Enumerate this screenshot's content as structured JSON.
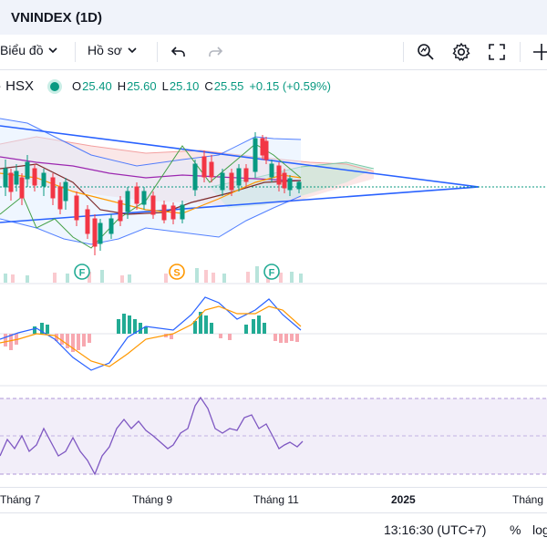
{
  "header": {
    "title": "VNINDEX (1D)"
  },
  "toolbar": {
    "chart_type_label": "Biểu đồ",
    "profile_label": "Hồ sơ",
    "icons": [
      "undo-icon",
      "redo-icon",
      "search-chart-icon",
      "gear-icon",
      "fullscreen-icon",
      "crosshair-icon"
    ]
  },
  "legend": {
    "symbol": "· HSX",
    "o_label": "O",
    "o_value": "25.40",
    "h_label": "H",
    "h_value": "25.60",
    "l_label": "L",
    "l_value": "25.10",
    "c_label": "C",
    "c_value": "25.55",
    "change": "+0.15 (+0.59%)"
  },
  "markers": {
    "f1": "F",
    "s1": "S",
    "f2": "F"
  },
  "time_axis": {
    "labels": [
      "Tháng 7",
      "Tháng 9",
      "Tháng 11",
      "2025",
      "Tháng"
    ]
  },
  "status": {
    "time": "13:16:30 (UTC+7)",
    "percent": "%",
    "log": "log"
  },
  "colors": {
    "up": "#089981",
    "down": "#f23645",
    "accent": "#2962ff",
    "rsi": "#7e57c2"
  }
}
